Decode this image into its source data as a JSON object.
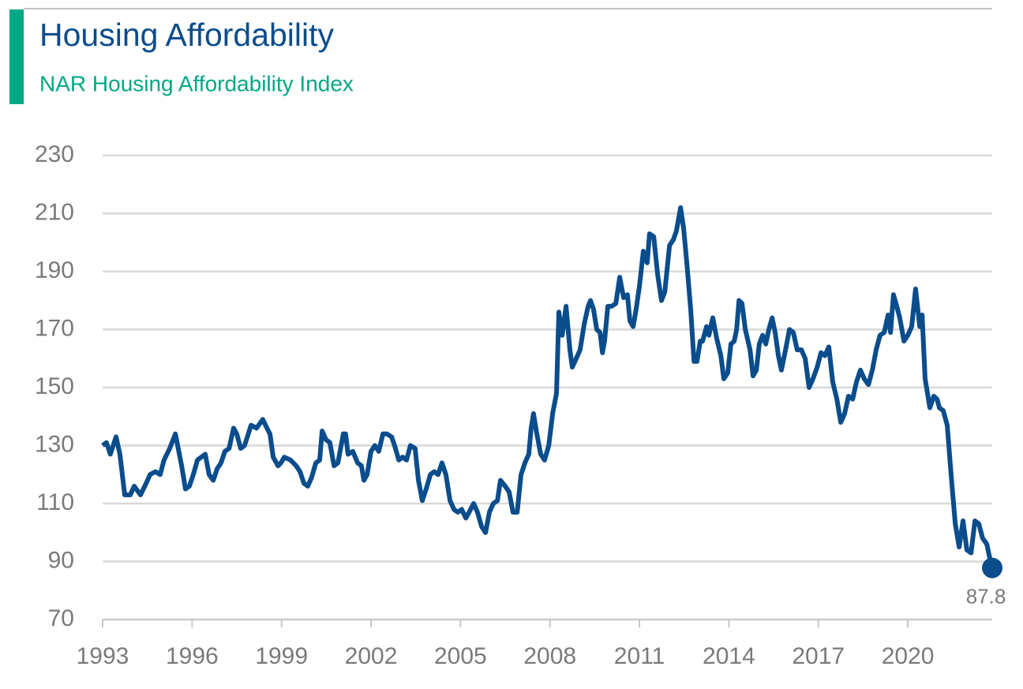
{
  "chart_data": {
    "type": "line",
    "title": "Housing Affordability",
    "subtitle": "NAR Housing Affordability Index",
    "x": [
      1993.0,
      1993.13,
      1993.26,
      1993.45,
      1993.58,
      1993.74,
      1993.93,
      1994.06,
      1994.27,
      1994.46,
      1994.59,
      1994.77,
      1994.93,
      1995.06,
      1995.25,
      1995.44,
      1995.65,
      1995.78,
      1995.91,
      1996.04,
      1996.18,
      1996.31,
      1996.44,
      1996.57,
      1996.71,
      1996.84,
      1996.97,
      1997.1,
      1997.24,
      1997.39,
      1997.5,
      1997.63,
      1997.76,
      1997.98,
      1998.16,
      1998.37,
      1998.51,
      1998.61,
      1998.72,
      1998.88,
      1998.98,
      1999.09,
      1999.3,
      1999.49,
      1999.62,
      1999.75,
      1999.88,
      2000.01,
      2000.15,
      2000.28,
      2000.36,
      2000.49,
      2000.62,
      2000.76,
      2000.89,
      2001.07,
      2001.15,
      2001.23,
      2001.39,
      2001.55,
      2001.68,
      2001.76,
      2001.87,
      2002.0,
      2002.13,
      2002.26,
      2002.4,
      2002.53,
      2002.69,
      2002.79,
      2002.93,
      2003.06,
      2003.19,
      2003.32,
      2003.48,
      2003.59,
      2003.72,
      2003.85,
      2003.99,
      2004.12,
      2004.25,
      2004.38,
      2004.51,
      2004.65,
      2004.78,
      2004.91,
      2005.04,
      2005.18,
      2005.34,
      2005.44,
      2005.57,
      2005.71,
      2005.84,
      2005.97,
      2006.1,
      2006.24,
      2006.34,
      2006.5,
      2006.63,
      2006.76,
      2006.9,
      2007.03,
      2007.16,
      2007.29,
      2007.37,
      2007.45,
      2007.56,
      2007.69,
      2007.82,
      2007.96,
      2008.09,
      2008.22,
      2008.3,
      2008.41,
      2008.54,
      2008.67,
      2008.75,
      2008.88,
      2009.01,
      2009.15,
      2009.28,
      2009.36,
      2009.46,
      2009.57,
      2009.68,
      2009.76,
      2009.83,
      2009.94,
      2010.07,
      2010.21,
      2010.34,
      2010.47,
      2010.6,
      2010.68,
      2010.79,
      2010.89,
      2011.0,
      2011.13,
      2011.26,
      2011.34,
      2011.48,
      2011.61,
      2011.74,
      2011.85,
      2012.01,
      2012.14,
      2012.24,
      2012.38,
      2012.48,
      2012.59,
      2012.72,
      2012.83,
      2012.93,
      2013.04,
      2013.12,
      2013.25,
      2013.33,
      2013.46,
      2013.59,
      2013.73,
      2013.83,
      2013.96,
      2014.07,
      2014.18,
      2014.26,
      2014.34,
      2014.44,
      2014.55,
      2014.71,
      2014.81,
      2014.92,
      2015.02,
      2015.13,
      2015.24,
      2015.34,
      2015.45,
      2015.55,
      2015.66,
      2015.76,
      2015.9,
      2016.03,
      2016.16,
      2016.29,
      2016.43,
      2016.56,
      2016.69,
      2016.82,
      2016.96,
      2017.09,
      2017.22,
      2017.35,
      2017.48,
      2017.62,
      2017.75,
      2017.88,
      2018.01,
      2018.15,
      2018.28,
      2018.41,
      2018.54,
      2018.68,
      2018.81,
      2018.94,
      2019.07,
      2019.21,
      2019.34,
      2019.42,
      2019.52,
      2019.63,
      2019.73,
      2019.87,
      2020.0,
      2020.13,
      2020.26,
      2020.4,
      2020.48,
      2020.58,
      2020.74,
      2020.87,
      2020.98,
      2021.06,
      2021.19,
      2021.32,
      2021.46,
      2021.59,
      2021.72,
      2021.85,
      2021.98,
      2022.12,
      2022.25,
      2022.38,
      2022.51,
      2022.65,
      2022.73,
      2022.83
    ],
    "series": [
      {
        "name": "NAR Housing Affordability Index",
        "color": "#0b4d8c",
        "values": [
          130,
          131,
          127,
          133,
          127,
          113,
          113,
          116,
          113,
          117,
          120,
          121,
          120,
          125,
          129,
          134,
          123,
          115,
          116,
          120,
          125,
          126,
          127,
          120,
          118,
          122,
          124,
          128,
          129,
          136,
          134,
          129,
          130,
          137,
          136,
          139,
          136,
          134,
          126,
          123,
          124,
          126,
          125,
          123,
          121,
          117,
          116,
          119,
          124,
          125,
          135,
          132,
          131,
          123,
          124,
          134,
          134,
          127,
          128,
          124,
          123,
          118,
          120,
          128,
          130,
          128,
          134,
          134,
          133,
          130,
          125,
          126,
          125,
          130,
          129,
          118,
          111,
          115,
          120,
          121,
          120,
          124,
          120,
          111,
          108,
          107,
          108,
          105,
          108,
          110,
          107,
          102,
          100,
          107,
          110,
          111,
          118,
          116,
          114,
          107,
          107,
          120,
          124,
          127,
          136,
          141,
          134,
          127,
          125,
          130,
          141,
          148,
          176,
          168,
          178,
          163,
          157,
          160,
          163,
          172,
          178,
          180,
          177,
          170,
          169,
          162,
          166,
          178,
          178,
          179,
          188,
          181,
          182,
          173,
          171,
          177,
          185,
          197,
          193,
          203,
          202,
          189,
          180,
          183,
          199,
          201,
          204,
          212,
          205,
          193,
          177,
          159,
          159,
          166,
          166,
          171,
          168,
          174,
          167,
          161,
          153,
          155,
          165,
          166,
          170,
          180,
          179,
          170,
          163,
          154,
          156,
          165,
          168,
          165,
          170,
          174,
          169,
          161,
          156,
          163,
          170,
          169,
          163,
          163,
          160,
          150,
          153,
          157,
          162,
          161,
          164,
          152,
          146,
          138,
          141,
          147,
          146,
          152,
          156,
          153,
          151,
          156,
          163,
          168,
          169,
          175,
          169,
          182,
          178,
          174,
          166,
          168,
          171,
          184,
          171,
          175,
          153,
          143,
          147,
          146,
          143,
          142,
          137,
          119,
          103,
          95,
          104,
          94,
          93,
          104,
          103,
          98,
          96,
          92,
          87.8
        ]
      }
    ],
    "xlim": [
      1993,
      2022.83
    ],
    "xticks": [
      1993,
      1996,
      1999,
      2002,
      2005,
      2008,
      2011,
      2014,
      2017,
      2020
    ],
    "ylim": [
      70,
      230
    ],
    "yticks": [
      70,
      90,
      110,
      130,
      150,
      170,
      190,
      210,
      230
    ],
    "grid": true
  }
}
